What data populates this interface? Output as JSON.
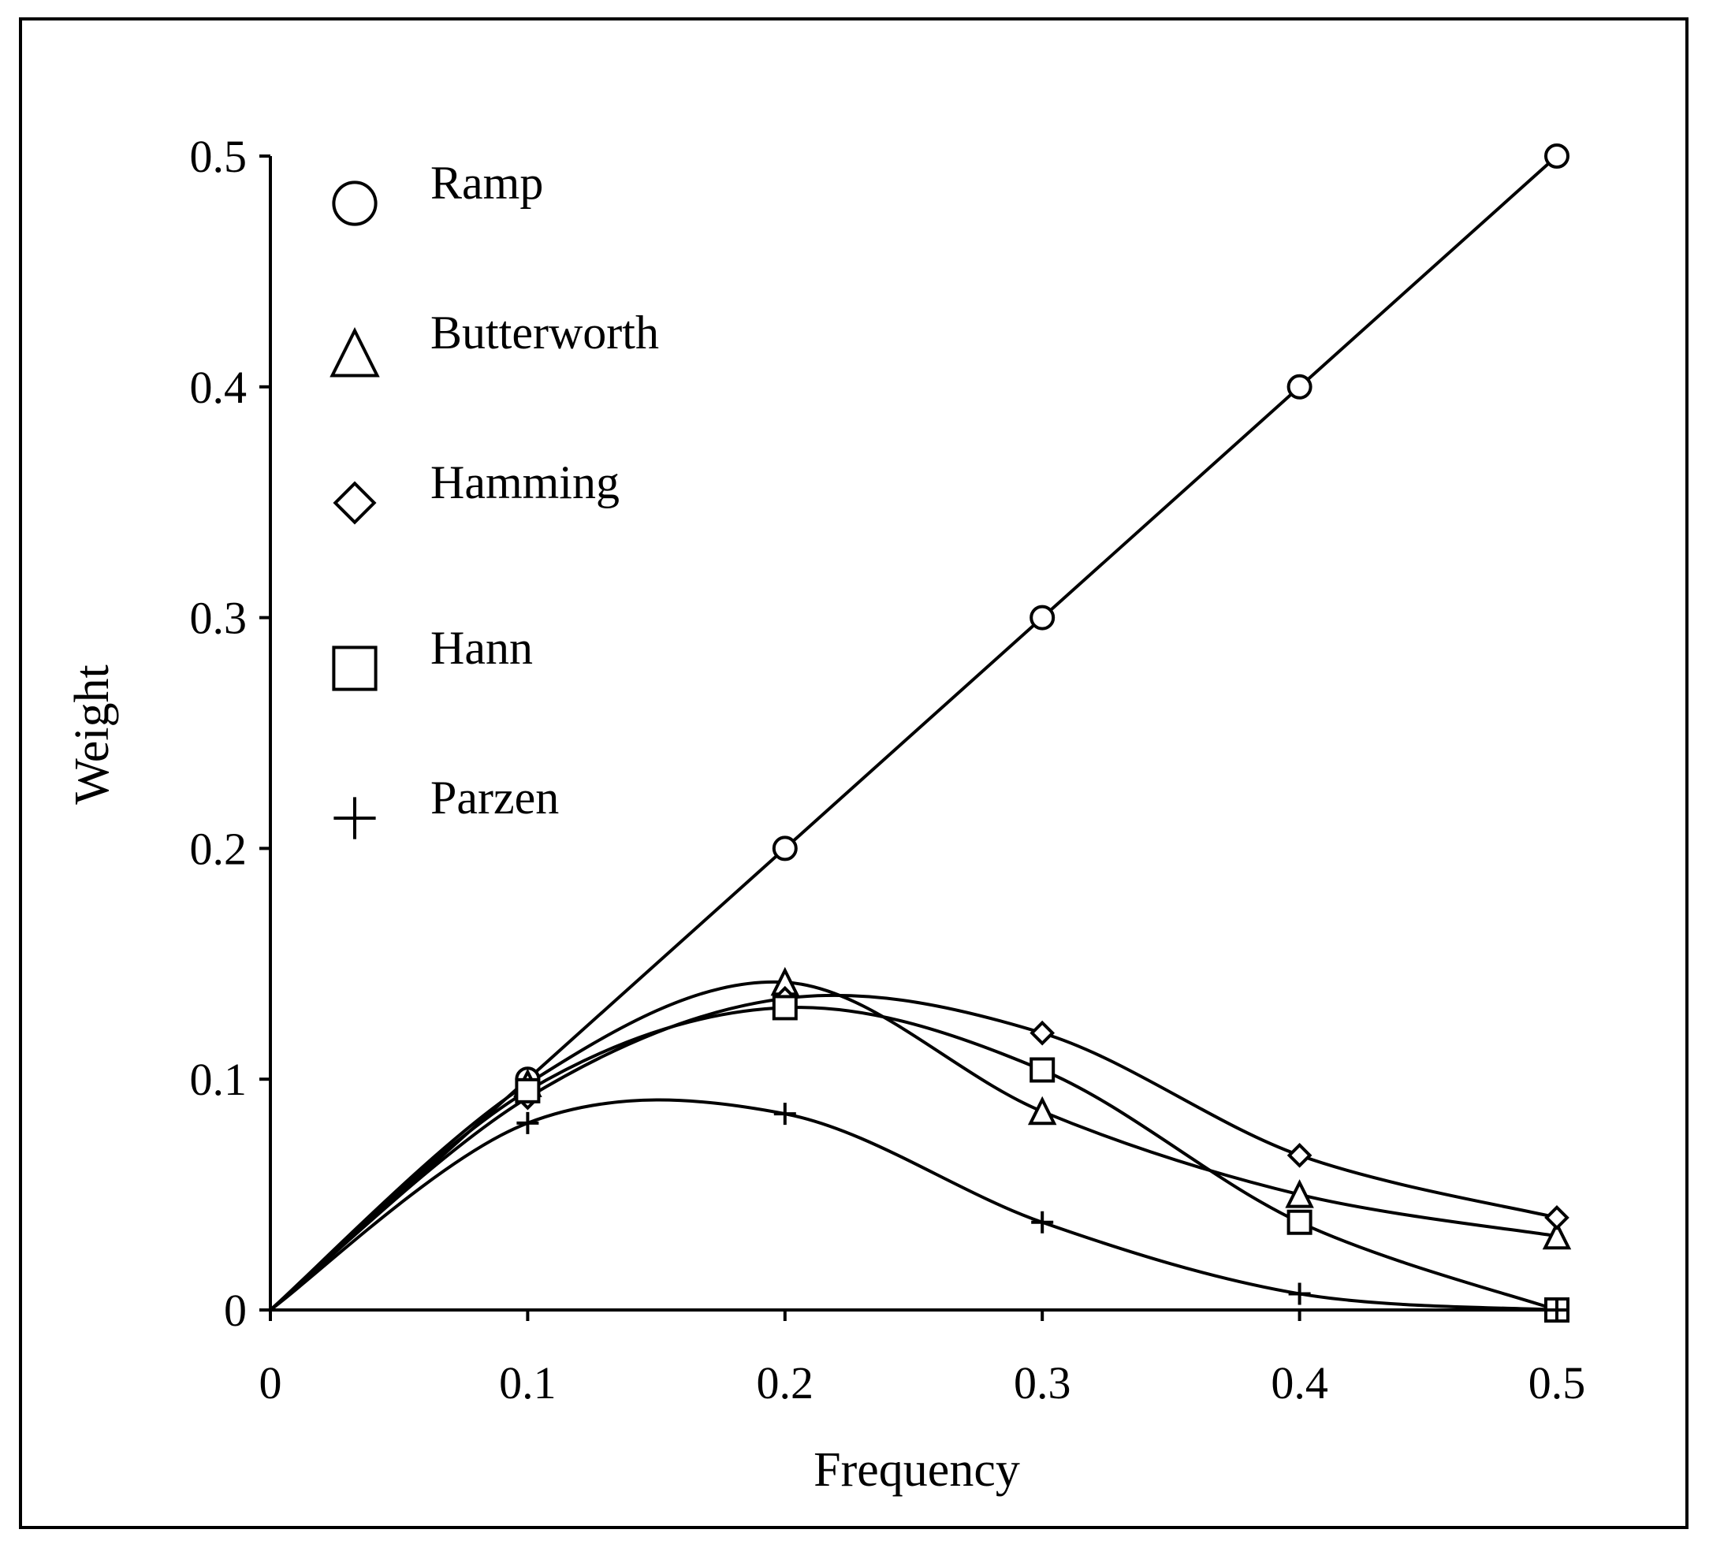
{
  "chart_data": {
    "type": "line",
    "title": "",
    "xlabel": "Frequency",
    "ylabel": "Weight",
    "xlim": [
      0,
      0.5
    ],
    "ylim": [
      0,
      0.5
    ],
    "xticks": [
      "0",
      "0.1",
      "0.2",
      "0.3",
      "0.4",
      "0.5"
    ],
    "yticks": [
      "0",
      "0.1",
      "0.2",
      "0.3",
      "0.4",
      "0.5"
    ],
    "grid": false,
    "legend_position": "top-left",
    "series": [
      {
        "name": "Ramp",
        "marker": "circle",
        "x": [
          0,
          0.1,
          0.2,
          0.3,
          0.4,
          0.5
        ],
        "values": [
          0,
          0.1,
          0.2,
          0.3,
          0.4,
          0.5
        ]
      },
      {
        "name": "Butterworth",
        "marker": "triangle",
        "x": [
          0,
          0.1,
          0.2,
          0.3,
          0.4,
          0.5
        ],
        "values": [
          0,
          0.098,
          0.142,
          0.086,
          0.05,
          0.032
        ]
      },
      {
        "name": "Hamming",
        "marker": "diamond",
        "x": [
          0,
          0.1,
          0.2,
          0.3,
          0.4,
          0.5
        ],
        "values": [
          0,
          0.092,
          0.135,
          0.12,
          0.067,
          0.04
        ]
      },
      {
        "name": "Hann",
        "marker": "square",
        "x": [
          0,
          0.1,
          0.2,
          0.3,
          0.4,
          0.5
        ],
        "values": [
          0,
          0.095,
          0.131,
          0.104,
          0.038,
          0
        ]
      },
      {
        "name": "Parzen",
        "marker": "plus",
        "x": [
          0,
          0.1,
          0.2,
          0.3,
          0.4,
          0.5
        ],
        "values": [
          0,
          0.081,
          0.085,
          0.038,
          0.007,
          0
        ]
      }
    ]
  }
}
